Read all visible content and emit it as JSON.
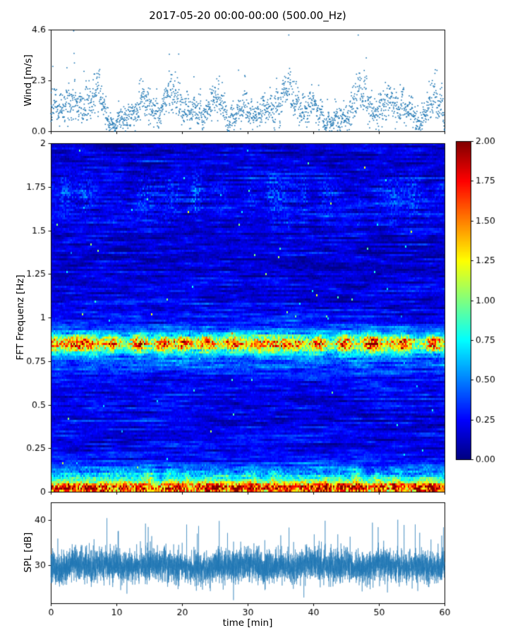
{
  "figure": {
    "title": "2017-05-20 00:00-00:00 (500.00_Hz)",
    "xlabel": "time [min]",
    "background_color": "#ffffff",
    "axis_color": "#000000",
    "seed": 20170520
  },
  "chart_data": [
    {
      "type": "scatter",
      "name": "wind-speed",
      "ylabel": "Wind [m/s]",
      "xlim": [
        0,
        60
      ],
      "ylim": [
        0,
        4.6
      ],
      "yticks": [
        0,
        2.3,
        4.6
      ],
      "ytick_labels": [
        "0.0",
        "2.3",
        "4.6"
      ],
      "marker_color": "#1f77b4",
      "n_points": 2100,
      "summary": "Gusty wind speed scatter over 60 min, mean ~1.4 m/s, lulls near 0 m/s and gust clusters peaking near 4.5 m/s"
    },
    {
      "type": "heatmap",
      "name": "fft-spectrogram",
      "ylabel": "FFT Frequenz [Hz]",
      "xlim": [
        0,
        60
      ],
      "ylim": [
        0,
        2
      ],
      "yticks": [
        0,
        0.25,
        0.5,
        0.75,
        1,
        1.25,
        1.5,
        1.75,
        2
      ],
      "ytick_labels": [
        "0",
        "0.25",
        "0.5",
        "0.75",
        "1",
        "1.25",
        "1.5",
        "1.75",
        "2"
      ],
      "colormap": "jet",
      "clim": [
        0,
        2
      ],
      "background_level": 0.1,
      "bands": [
        {
          "freq_hz": 0.85,
          "sigma_hz": 0.035,
          "amplitude": 1.1,
          "note": "bright time-varying band, green to orange/red blobs"
        },
        {
          "freq_hz": 0.82,
          "sigma_hz": 0.1,
          "amplitude": 0.3,
          "note": "broad cyan glow around main band"
        },
        {
          "freq_hz": 0.02,
          "sigma_hz": 0.025,
          "amplitude": 1.5,
          "note": "strong red/dark-red line at bottom edge"
        },
        {
          "freq_hz": 0.08,
          "sigma_hz": 0.045,
          "amplitude": 0.55,
          "note": "green speckled band near bottom"
        },
        {
          "freq_hz": 1.7,
          "sigma_hz": 0.09,
          "amplitude": 0.45,
          "note": "intermittent cyan/green streaks near 1.6-1.8 Hz"
        },
        {
          "freq_hz": 1.55,
          "sigma_hz": 0.04,
          "amplitude": 0.18,
          "note": "faint streaks"
        }
      ]
    },
    {
      "type": "line",
      "name": "spl",
      "ylabel": "SPL [dB]",
      "xlim": [
        0,
        60
      ],
      "ylim": [
        21.5,
        44
      ],
      "yticks": [
        30,
        40
      ],
      "ytick_labels": [
        "30",
        "40"
      ],
      "xticks": [
        0,
        10,
        20,
        30,
        40,
        50,
        60
      ],
      "xtick_labels": [
        "0",
        "10",
        "20",
        "30",
        "40",
        "50",
        "60"
      ],
      "line_color": "#1f77b4",
      "n_points": 6000,
      "mean_level_db": 30,
      "summary": "Dense noisy SPL trace around 30 dB with spikes up to ~43 dB and dips to ~24 dB"
    }
  ],
  "colorbar": {
    "colormap": "jet",
    "clim": [
      0,
      2
    ],
    "ticks": [
      0,
      0.25,
      0.5,
      0.75,
      1,
      1.25,
      1.5,
      1.75,
      2
    ],
    "tick_labels": [
      "0.00",
      "0.25",
      "0.50",
      "0.75",
      "1.00",
      "1.25",
      "1.50",
      "1.75",
      "2.00"
    ]
  }
}
